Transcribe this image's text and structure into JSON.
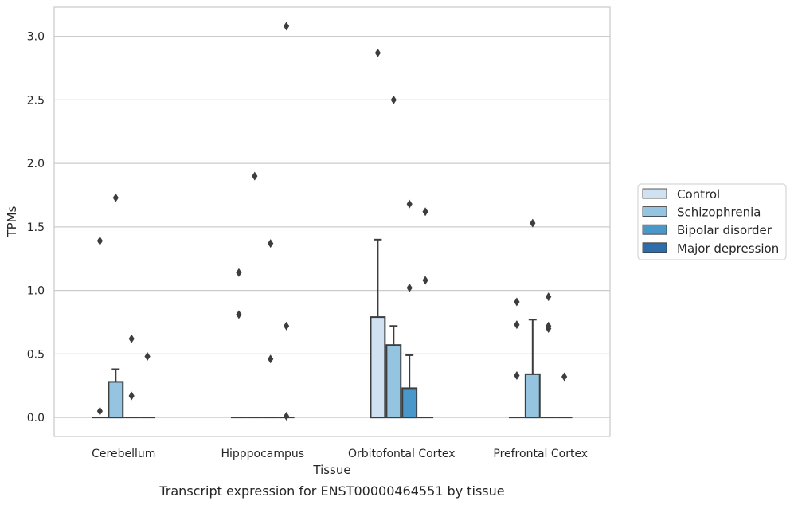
{
  "chart_data": {
    "type": "box",
    "caption": "Transcript expression for ENST00000464551 by tissue",
    "xlabel": "Tissue",
    "ylabel": "TPMs",
    "ylim": [
      -0.15,
      3.23
    ],
    "y_ticks": [
      0.0,
      0.5,
      1.0,
      1.5,
      2.0,
      2.5,
      3.0
    ],
    "y_tick_labels": [
      "0.0",
      "0.5",
      "1.0",
      "1.5",
      "2.0",
      "2.5",
      "3.0"
    ],
    "categories": [
      "Cerebellum",
      "Hipppocampus",
      "Orbitofontal Cortex",
      "Prefrontal Cortex"
    ],
    "grid": "horizontal",
    "legend_position": "outside-right",
    "series": [
      {
        "name": "Control",
        "color": "#d0e1f2",
        "boxes": [
          {
            "q1": 0,
            "median": 0,
            "q3": 0,
            "whisker_low": 0,
            "whisker_high": 0,
            "outliers": [
              0.05,
              1.39
            ]
          },
          {
            "q1": 0,
            "median": 0,
            "q3": 0,
            "whisker_low": 0,
            "whisker_high": 0,
            "outliers": [
              0.81,
              1.14
            ]
          },
          {
            "q1": 0,
            "median": 0,
            "q3": 0.79,
            "whisker_low": 0,
            "whisker_high": 1.4,
            "outliers": [
              2.87
            ]
          },
          {
            "q1": 0,
            "median": 0,
            "q3": 0,
            "whisker_low": 0,
            "whisker_high": 0,
            "outliers": [
              0.33,
              0.73,
              0.91
            ]
          }
        ]
      },
      {
        "name": "Schizophrenia",
        "color": "#94c4df",
        "boxes": [
          {
            "q1": 0,
            "median": 0,
            "q3": 0.28,
            "whisker_low": 0,
            "whisker_high": 0.38,
            "outliers": [
              1.73
            ]
          },
          {
            "q1": 0,
            "median": 0,
            "q3": 0,
            "whisker_low": 0,
            "whisker_high": 0,
            "outliers": [
              1.9
            ]
          },
          {
            "q1": 0,
            "median": 0,
            "q3": 0.57,
            "whisker_low": 0,
            "whisker_high": 0.72,
            "outliers": [
              2.5
            ]
          },
          {
            "q1": 0,
            "median": 0,
            "q3": 0.34,
            "whisker_low": 0,
            "whisker_high": 0.77,
            "outliers": [
              1.53
            ]
          }
        ]
      },
      {
        "name": "Bipolar disorder",
        "color": "#4a98c9",
        "boxes": [
          {
            "q1": 0,
            "median": 0,
            "q3": 0,
            "whisker_low": 0,
            "whisker_high": 0,
            "outliers": [
              0.17,
              0.62
            ]
          },
          {
            "q1": 0,
            "median": 0,
            "q3": 0,
            "whisker_low": 0,
            "whisker_high": 0,
            "outliers": [
              0.46,
              1.37
            ]
          },
          {
            "q1": 0,
            "median": 0,
            "q3": 0.23,
            "whisker_low": 0,
            "whisker_high": 0.49,
            "outliers": [
              1.02,
              1.68
            ]
          },
          {
            "q1": 0,
            "median": 0,
            "q3": 0,
            "whisker_low": 0,
            "whisker_high": 0,
            "outliers": [
              0.7,
              0.72,
              0.95
            ]
          }
        ]
      },
      {
        "name": "Major depression",
        "color": "#2e6da9",
        "boxes": [
          {
            "q1": 0,
            "median": 0,
            "q3": 0,
            "whisker_low": 0,
            "whisker_high": 0,
            "outliers": [
              0.48
            ]
          },
          {
            "q1": 0,
            "median": 0,
            "q3": 0,
            "whisker_low": 0,
            "whisker_high": 0,
            "outliers": [
              0.01,
              0.72,
              3.08
            ]
          },
          {
            "q1": 0,
            "median": 0,
            "q3": 0,
            "whisker_low": 0,
            "whisker_high": 0,
            "outliers": [
              1.08,
              1.62
            ]
          },
          {
            "q1": 0,
            "median": 0,
            "q3": 0,
            "whisker_low": 0,
            "whisker_high": 0,
            "outliers": [
              0.32
            ]
          }
        ]
      }
    ]
  }
}
